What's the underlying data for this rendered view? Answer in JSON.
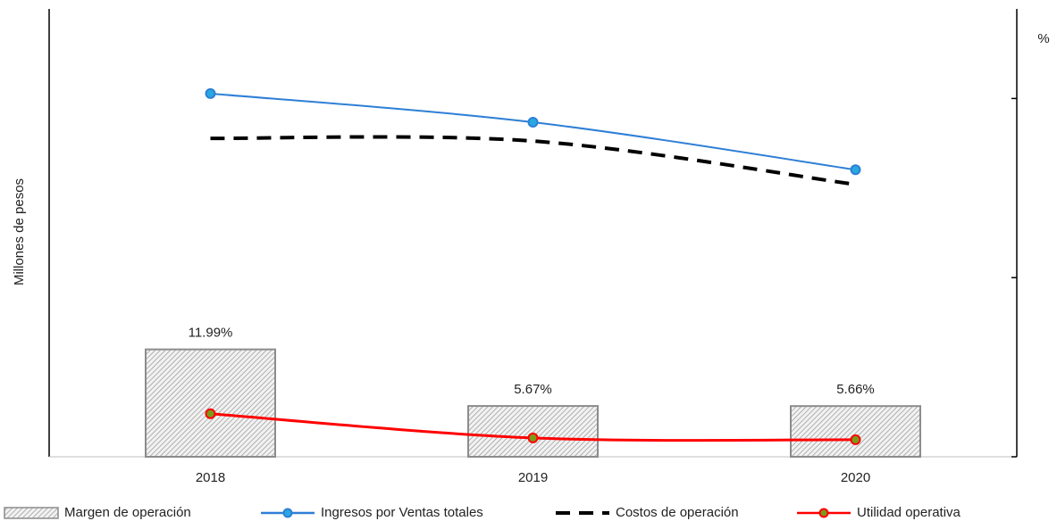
{
  "chart_data": {
    "type": "combo",
    "y_label": "Millones de pesos",
    "y2_label": "%",
    "categories": [
      "2018",
      "2019",
      "2020"
    ],
    "ylim": [
      0,
      100
    ],
    "y2lim": [
      0,
      50
    ],
    "y2ticks": [
      0,
      20,
      40
    ],
    "series": [
      {
        "name": "Margen de operación",
        "type": "bar",
        "axis": "y2",
        "color": "#8c8c8c",
        "hatch": true,
        "values": [
          11.99,
          5.67,
          5.66
        ],
        "value_labels": [
          "11.99%",
          "5.67%",
          "5.66%"
        ]
      },
      {
        "name": "Ingresos por Ventas totales",
        "type": "line",
        "color": "#2e7fd6",
        "marker_color": "#29a8e0",
        "marker": true,
        "dashed": false,
        "values": [
          81.1,
          74.7,
          64.1
        ]
      },
      {
        "name": "Costos de operación",
        "type": "line",
        "color": "#000000",
        "marker": false,
        "dashed": true,
        "values": [
          71.1,
          70.5,
          60.8
        ]
      },
      {
        "name": "Utilidad operativa",
        "type": "line",
        "color": "#ff0000",
        "marker_color": "#7a9a1a",
        "marker": true,
        "dashed": false,
        "values": [
          9.6,
          4.2,
          3.8
        ]
      }
    ]
  }
}
